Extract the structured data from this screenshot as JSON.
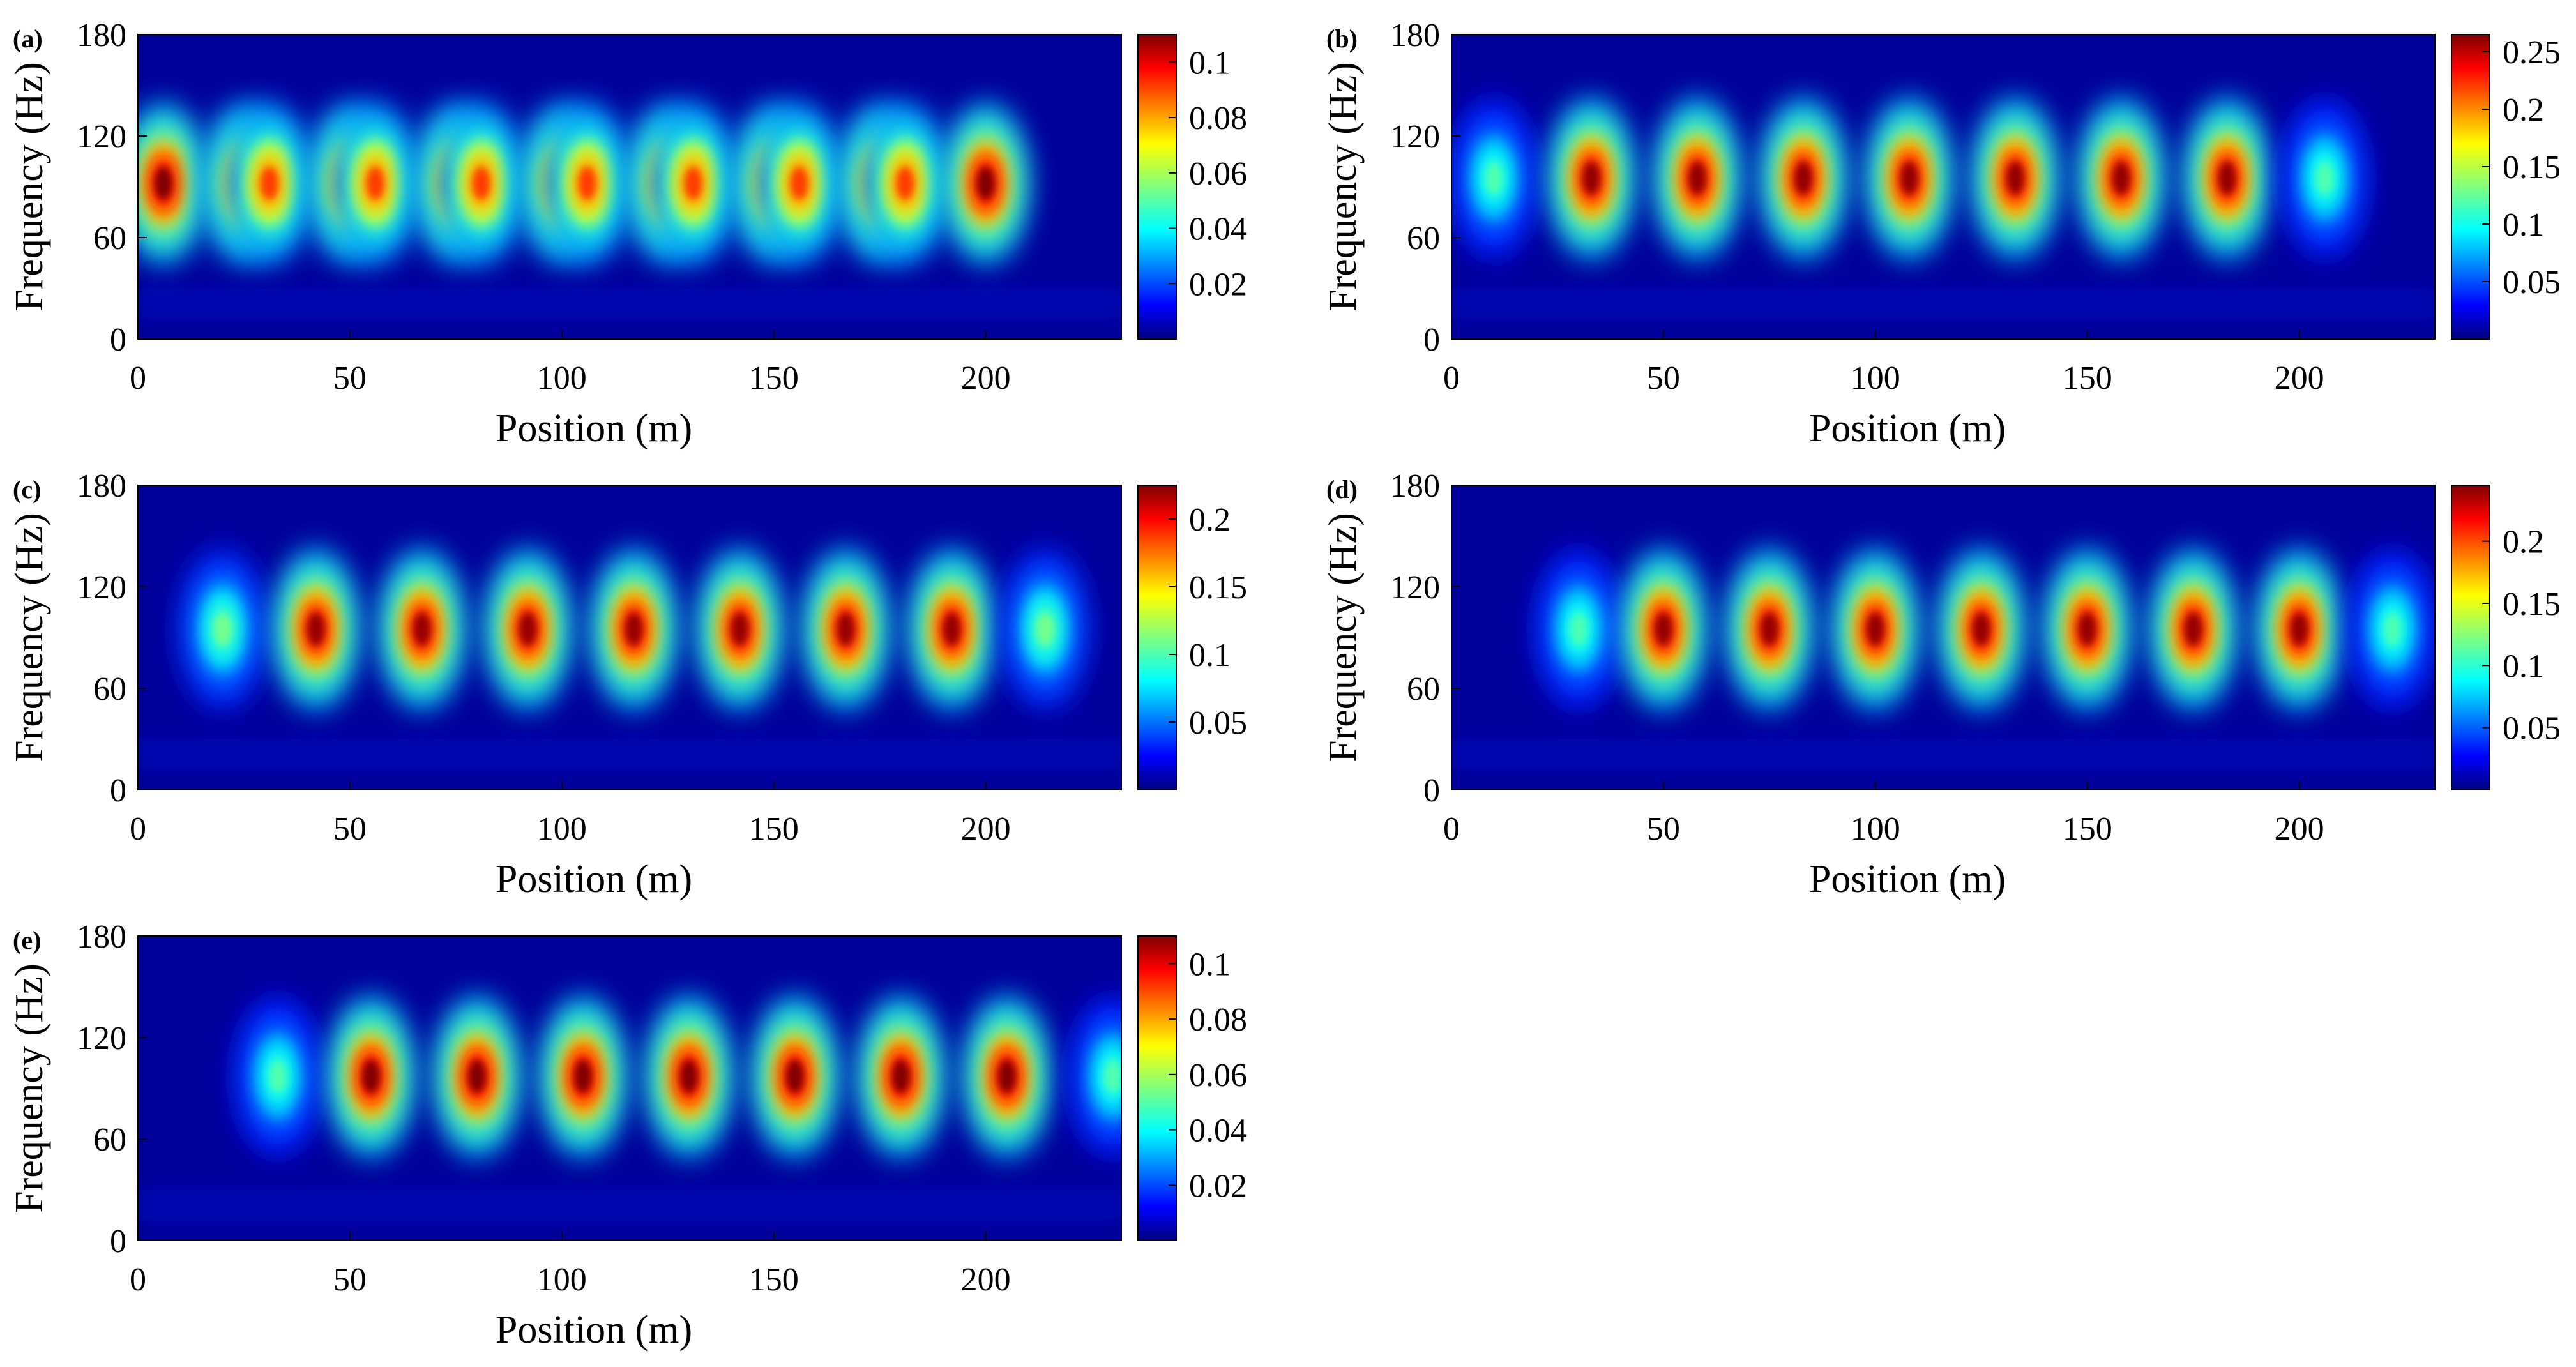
{
  "chart_data": [
    {
      "panel": "(a)",
      "type": "heatmap",
      "xlabel": "Position (m)",
      "ylabel": "Frequency (Hz)",
      "xlim": [
        0,
        232
      ],
      "ylim": [
        0,
        180
      ],
      "xticks": [
        "0",
        "50",
        "100",
        "150",
        "200"
      ],
      "yticks": [
        "0",
        "60",
        "120",
        "180"
      ],
      "colormap": "jet",
      "colorbar": {
        "range": [
          0,
          0.11
        ],
        "ticks": [
          "0.02",
          "0.04",
          "0.06",
          "0.08",
          "0.1"
        ],
        "tick_values": [
          0.02,
          0.04,
          0.06,
          0.08,
          0.1
        ]
      },
      "hotspots": [
        {
          "x": 6,
          "y": 92,
          "value": 0.11
        },
        {
          "x": 25,
          "y": 92,
          "value": 0.1
        },
        {
          "x": 31,
          "y": 92,
          "value": 0.09
        },
        {
          "x": 50,
          "y": 92,
          "value": 0.1
        },
        {
          "x": 56,
          "y": 92,
          "value": 0.09
        },
        {
          "x": 75,
          "y": 92,
          "value": 0.1
        },
        {
          "x": 81,
          "y": 92,
          "value": 0.09
        },
        {
          "x": 100,
          "y": 92,
          "value": 0.1
        },
        {
          "x": 106,
          "y": 92,
          "value": 0.09
        },
        {
          "x": 125,
          "y": 92,
          "value": 0.1
        },
        {
          "x": 131,
          "y": 92,
          "value": 0.09
        },
        {
          "x": 150,
          "y": 92,
          "value": 0.1
        },
        {
          "x": 156,
          "y": 92,
          "value": 0.09
        },
        {
          "x": 175,
          "y": 92,
          "value": 0.1
        },
        {
          "x": 181,
          "y": 92,
          "value": 0.09
        },
        {
          "x": 200,
          "y": 92,
          "value": 0.11
        }
      ]
    },
    {
      "panel": "(b)",
      "type": "heatmap",
      "xlabel": "Position (m)",
      "ylabel": "Frequency (Hz)",
      "xlim": [
        0,
        232
      ],
      "ylim": [
        0,
        180
      ],
      "xticks": [
        "0",
        "50",
        "100",
        "150",
        "200"
      ],
      "yticks": [
        "0",
        "60",
        "120",
        "180"
      ],
      "colormap": "jet",
      "colorbar": {
        "range": [
          0,
          0.265
        ],
        "ticks": [
          "0.05",
          "0.1",
          "0.15",
          "0.2",
          "0.25"
        ],
        "tick_values": [
          0.05,
          0.1,
          0.15,
          0.2,
          0.25
        ]
      },
      "hotspots": [
        {
          "x": 10,
          "y": 95,
          "value": 0.12
        },
        {
          "x": 33,
          "y": 95,
          "value": 0.26
        },
        {
          "x": 58,
          "y": 95,
          "value": 0.26
        },
        {
          "x": 83,
          "y": 95,
          "value": 0.26
        },
        {
          "x": 108,
          "y": 95,
          "value": 0.26
        },
        {
          "x": 133,
          "y": 95,
          "value": 0.26
        },
        {
          "x": 158,
          "y": 95,
          "value": 0.26
        },
        {
          "x": 183,
          "y": 95,
          "value": 0.26
        },
        {
          "x": 206,
          "y": 95,
          "value": 0.12
        }
      ]
    },
    {
      "panel": "(c)",
      "type": "heatmap",
      "xlabel": "Position (m)",
      "ylabel": "Frequency (Hz)",
      "xlim": [
        0,
        232
      ],
      "ylim": [
        0,
        180
      ],
      "xticks": [
        "0",
        "50",
        "100",
        "150",
        "200"
      ],
      "yticks": [
        "0",
        "60",
        "120",
        "180"
      ],
      "colormap": "jet",
      "colorbar": {
        "range": [
          0,
          0.225
        ],
        "ticks": [
          "0.05",
          "0.1",
          "0.15",
          "0.2"
        ],
        "tick_values": [
          0.05,
          0.1,
          0.15,
          0.2
        ]
      },
      "hotspots": [
        {
          "x": 20,
          "y": 95,
          "value": 0.11
        },
        {
          "x": 42,
          "y": 95,
          "value": 0.22
        },
        {
          "x": 67,
          "y": 95,
          "value": 0.22
        },
        {
          "x": 92,
          "y": 95,
          "value": 0.22
        },
        {
          "x": 117,
          "y": 95,
          "value": 0.22
        },
        {
          "x": 142,
          "y": 95,
          "value": 0.22
        },
        {
          "x": 167,
          "y": 95,
          "value": 0.22
        },
        {
          "x": 192,
          "y": 95,
          "value": 0.22
        },
        {
          "x": 214,
          "y": 95,
          "value": 0.11
        }
      ]
    },
    {
      "panel": "(d)",
      "type": "heatmap",
      "xlabel": "Position (m)",
      "ylabel": "Frequency (Hz)",
      "xlim": [
        0,
        232
      ],
      "ylim": [
        0,
        180
      ],
      "xticks": [
        "0",
        "50",
        "100",
        "150",
        "200"
      ],
      "yticks": [
        "0",
        "60",
        "120",
        "180"
      ],
      "colormap": "jet",
      "colorbar": {
        "range": [
          0,
          0.245
        ],
        "ticks": [
          "0.05",
          "0.1",
          "0.15",
          "0.2"
        ],
        "tick_values": [
          0.05,
          0.1,
          0.15,
          0.2
        ]
      },
      "hotspots": [
        {
          "x": 30,
          "y": 95,
          "value": 0.11
        },
        {
          "x": 50,
          "y": 95,
          "value": 0.24
        },
        {
          "x": 75,
          "y": 95,
          "value": 0.24
        },
        {
          "x": 100,
          "y": 95,
          "value": 0.24
        },
        {
          "x": 125,
          "y": 95,
          "value": 0.24
        },
        {
          "x": 150,
          "y": 95,
          "value": 0.24
        },
        {
          "x": 175,
          "y": 95,
          "value": 0.24
        },
        {
          "x": 200,
          "y": 95,
          "value": 0.24
        },
        {
          "x": 222,
          "y": 95,
          "value": 0.11
        }
      ]
    },
    {
      "panel": "(e)",
      "type": "heatmap",
      "xlabel": "Position (m)",
      "ylabel": "Frequency (Hz)",
      "xlim": [
        0,
        232
      ],
      "ylim": [
        0,
        180
      ],
      "xticks": [
        "0",
        "50",
        "100",
        "150",
        "200"
      ],
      "yticks": [
        "0",
        "60",
        "120",
        "180"
      ],
      "colormap": "jet",
      "colorbar": {
        "range": [
          0,
          0.11
        ],
        "ticks": [
          "0.02",
          "0.04",
          "0.06",
          "0.08",
          "0.1"
        ],
        "tick_values": [
          0.02,
          0.04,
          0.06,
          0.08,
          0.1
        ]
      },
      "hotspots": [
        {
          "x": 33,
          "y": 97,
          "value": 0.05
        },
        {
          "x": 55,
          "y": 97,
          "value": 0.11
        },
        {
          "x": 80,
          "y": 97,
          "value": 0.11
        },
        {
          "x": 105,
          "y": 97,
          "value": 0.11
        },
        {
          "x": 130,
          "y": 97,
          "value": 0.11
        },
        {
          "x": 155,
          "y": 97,
          "value": 0.11
        },
        {
          "x": 180,
          "y": 97,
          "value": 0.11
        },
        {
          "x": 205,
          "y": 97,
          "value": 0.11
        },
        {
          "x": 230,
          "y": 97,
          "value": 0.05
        }
      ]
    }
  ]
}
